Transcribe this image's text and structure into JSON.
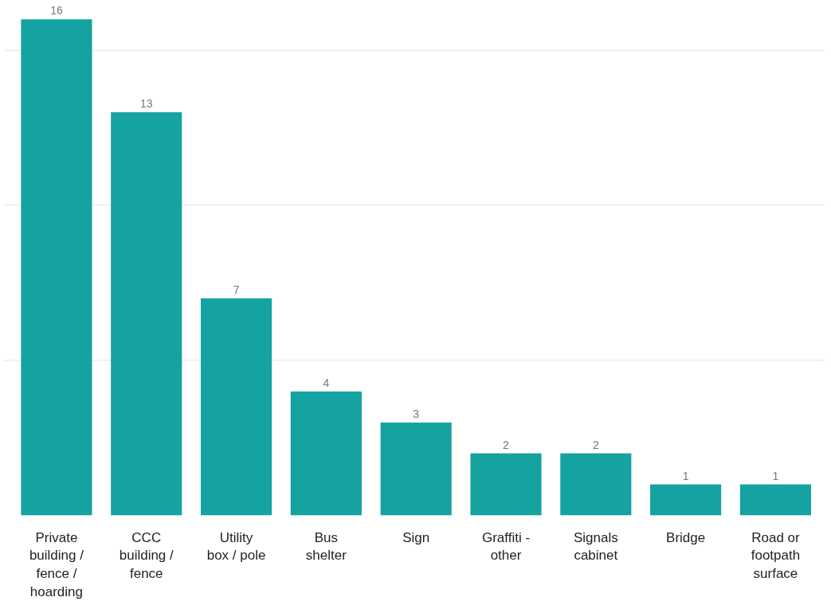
{
  "chart_data": {
    "type": "bar",
    "categories": [
      "Private building / fence / hoarding",
      "CCC building / fence",
      "Utility box / pole",
      "Bus shelter",
      "Sign",
      "Graffiti - other",
      "Signals cabinet",
      "Bridge",
      "Road or footpath surface"
    ],
    "values": [
      16,
      13,
      7,
      4,
      3,
      2,
      2,
      1,
      1
    ],
    "color": "#14a3a0",
    "tick_labels": "x",
    "grid": "y",
    "data_labels": true
  }
}
